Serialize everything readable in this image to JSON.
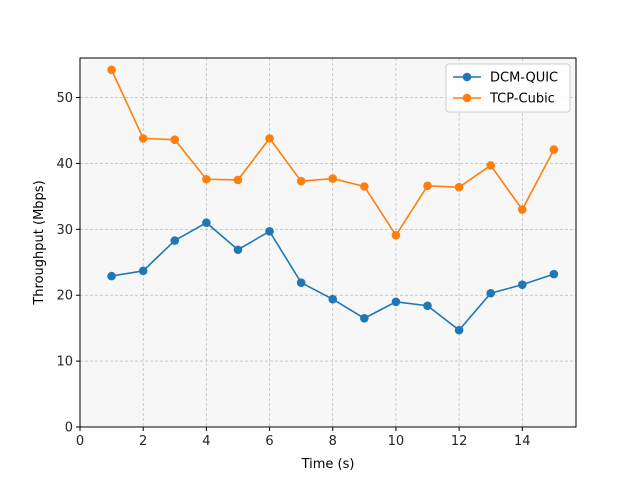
{
  "chart_data": {
    "type": "line",
    "title": "",
    "xlabel": "Time (s)",
    "ylabel": "Throughput (Mbps)",
    "xlim": [
      0,
      15.7
    ],
    "ylim": [
      0,
      56
    ],
    "xticks": [
      0,
      2,
      4,
      6,
      8,
      10,
      12,
      14
    ],
    "yticks": [
      0,
      10,
      20,
      30,
      40,
      50
    ],
    "grid": true,
    "legend_position": "top-right",
    "x": [
      1,
      2,
      3,
      4,
      5,
      6,
      7,
      8,
      9,
      10,
      11,
      12,
      13,
      14,
      15
    ],
    "series": [
      {
        "name": "DCM-QUIC",
        "color": "#1f77b4",
        "marker": "circle",
        "values": [
          22.9,
          23.7,
          28.3,
          31.0,
          26.9,
          29.7,
          21.9,
          19.4,
          16.5,
          19.0,
          18.4,
          14.7,
          20.3,
          21.6,
          23.2
        ]
      },
      {
        "name": "TCP-Cubic",
        "color": "#ff7f0e",
        "marker": "circle",
        "values": [
          54.2,
          43.8,
          43.6,
          37.6,
          37.5,
          43.8,
          37.3,
          37.7,
          36.5,
          29.1,
          36.6,
          36.4,
          39.7,
          33.0,
          42.1
        ]
      }
    ],
    "colors": {
      "plot_background": "#f7f7f7",
      "grid": "#b0b0b0",
      "axis": "#000000"
    }
  }
}
